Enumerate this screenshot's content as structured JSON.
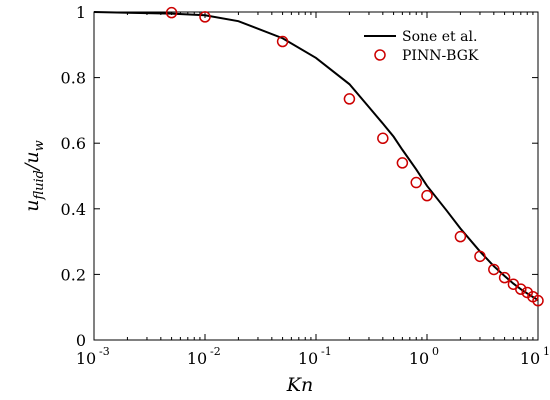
{
  "chart_data": {
    "type": "line",
    "xlabel": {
      "main": "Kn",
      "sub": ""
    },
    "ylabel": {
      "main": "u",
      "sub": "fluid",
      "slash": "/",
      "main2": "u",
      "sub2": "w"
    },
    "xscale": "log",
    "xlim": [
      0.001,
      10
    ],
    "ylim": [
      0,
      1
    ],
    "x_ticks": [
      {
        "value": 0.001,
        "base": "10",
        "exp": "-3"
      },
      {
        "value": 0.01,
        "base": "10",
        "exp": "-2"
      },
      {
        "value": 0.1,
        "base": "10",
        "exp": "-1"
      },
      {
        "value": 1,
        "base": "10",
        "exp": "0"
      },
      {
        "value": 10,
        "base": "10",
        "exp": "1"
      }
    ],
    "y_ticks": [
      {
        "value": 0,
        "label": "0"
      },
      {
        "value": 0.2,
        "label": "0.2"
      },
      {
        "value": 0.4,
        "label": "0.4"
      },
      {
        "value": 0.6,
        "label": "0.6"
      },
      {
        "value": 0.8,
        "label": "0.8"
      },
      {
        "value": 1,
        "label": "1"
      }
    ],
    "grid": false,
    "legend_position": "top-right",
    "series": [
      {
        "name": "Sone et al.",
        "style": "line",
        "color": "#000000",
        "x": [
          0.001,
          0.005,
          0.01,
          0.02,
          0.05,
          0.1,
          0.2,
          0.3,
          0.4,
          0.5,
          0.6,
          0.8,
          1,
          1.5,
          2,
          3,
          4,
          5,
          6,
          7,
          8,
          9,
          10
        ],
        "y": [
          1.0,
          0.995,
          0.99,
          0.972,
          0.92,
          0.86,
          0.78,
          0.71,
          0.66,
          0.62,
          0.58,
          0.52,
          0.47,
          0.395,
          0.34,
          0.27,
          0.225,
          0.195,
          0.172,
          0.155,
          0.142,
          0.131,
          0.122
        ]
      },
      {
        "name": "PINN-BGK",
        "style": "markers",
        "marker": "circle",
        "color": "#cc0000",
        "x": [
          0.005,
          0.01,
          0.05,
          0.2,
          0.4,
          0.6,
          0.8,
          1,
          2,
          3,
          4,
          5,
          6,
          7,
          8,
          9,
          10
        ],
        "y": [
          0.998,
          0.985,
          0.91,
          0.735,
          0.615,
          0.54,
          0.48,
          0.44,
          0.315,
          0.255,
          0.215,
          0.19,
          0.17,
          0.155,
          0.145,
          0.132,
          0.12
        ]
      }
    ]
  }
}
